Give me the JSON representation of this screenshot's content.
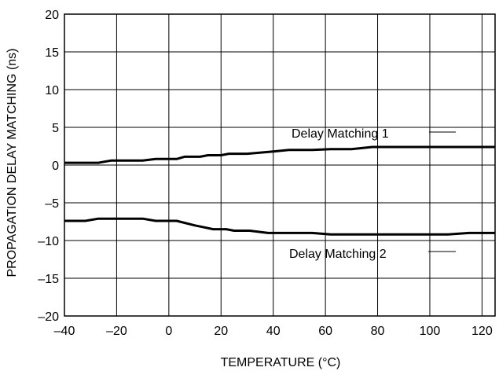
{
  "chart_data": {
    "type": "line",
    "title": "",
    "xlabel": "TEMPERATURE (°C)",
    "ylabel": "PROPAGATION DELAY MATCHING (ns)",
    "xlim": [
      -40,
      125
    ],
    "ylim": [
      -20,
      20
    ],
    "x_ticks": [
      -40,
      -20,
      0,
      20,
      40,
      60,
      80,
      100,
      120
    ],
    "y_ticks": [
      20,
      15,
      10,
      5,
      0,
      -5,
      -10,
      -15,
      -20
    ],
    "x_tick_labels": [
      "–40",
      "–20",
      "0",
      "20",
      "40",
      "60",
      "80",
      "100",
      "120"
    ],
    "y_tick_labels": [
      "20",
      "15",
      "10",
      "5",
      "0",
      "–5",
      "–10",
      "–15",
      "–20"
    ],
    "grid": true,
    "series": [
      {
        "name": "Delay Matching 1",
        "color": "#000000",
        "points": [
          [
            -40,
            0.3
          ],
          [
            -27,
            0.3
          ],
          [
            -22,
            0.6
          ],
          [
            -10,
            0.6
          ],
          [
            -5,
            0.8
          ],
          [
            3,
            0.8
          ],
          [
            6,
            1.1
          ],
          [
            12,
            1.1
          ],
          [
            15,
            1.3
          ],
          [
            20,
            1.3
          ],
          [
            23,
            1.5
          ],
          [
            30,
            1.5
          ],
          [
            40,
            1.8
          ],
          [
            46,
            2.0
          ],
          [
            55,
            2.0
          ],
          [
            62,
            2.1
          ],
          [
            70,
            2.1
          ],
          [
            78,
            2.4
          ],
          [
            90,
            2.4
          ],
          [
            100,
            2.4
          ],
          [
            110,
            2.4
          ],
          [
            125,
            2.4
          ]
        ]
      },
      {
        "name": "Delay Matching 2",
        "color": "#000000",
        "points": [
          [
            -40,
            -7.4
          ],
          [
            -32,
            -7.4
          ],
          [
            -27,
            -7.1
          ],
          [
            -10,
            -7.1
          ],
          [
            -5,
            -7.4
          ],
          [
            3,
            -7.4
          ],
          [
            10,
            -8.0
          ],
          [
            17,
            -8.5
          ],
          [
            22,
            -8.5
          ],
          [
            25,
            -8.7
          ],
          [
            31,
            -8.7
          ],
          [
            38,
            -9.0
          ],
          [
            45,
            -9.0
          ],
          [
            55,
            -9.0
          ],
          [
            62,
            -9.2
          ],
          [
            70,
            -9.2
          ],
          [
            80,
            -9.2
          ],
          [
            100,
            -9.2
          ],
          [
            107,
            -9.2
          ],
          [
            115,
            -9.0
          ],
          [
            125,
            -9.0
          ]
        ]
      }
    ]
  }
}
